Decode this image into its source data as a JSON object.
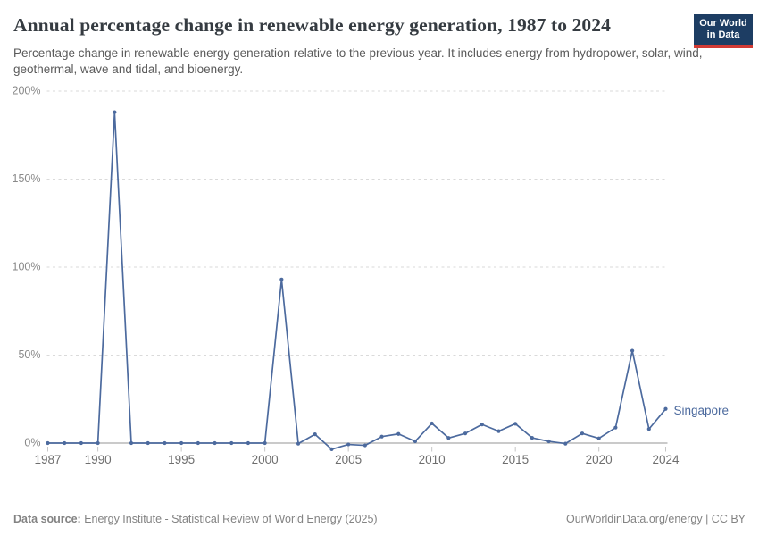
{
  "header": {
    "title": "Annual percentage change in renewable energy generation, 1987 to 2024",
    "subtitle": "Percentage change in renewable energy generation relative to the previous year. It includes energy from hydropower, solar, wind, geothermal, wave and tidal, and bioenergy."
  },
  "logo": {
    "line1": "Our World",
    "line2": "in Data",
    "bg_color": "#1d3d63",
    "accent_color": "#d23a34"
  },
  "chart_data": {
    "type": "line",
    "title": "Annual percentage change in renewable energy generation, 1987 to 2024",
    "xlabel": "",
    "ylabel": "",
    "x": [
      1987,
      1988,
      1989,
      1990,
      1991,
      1992,
      1993,
      1994,
      1995,
      1996,
      1997,
      1998,
      1999,
      2000,
      2001,
      2002,
      2003,
      2004,
      2005,
      2006,
      2007,
      2008,
      2009,
      2010,
      2011,
      2012,
      2013,
      2014,
      2015,
      2016,
      2017,
      2018,
      2019,
      2020,
      2021,
      2022,
      2023,
      2024
    ],
    "series": [
      {
        "name": "Singapore",
        "color": "#4c6a9e",
        "values": [
          0,
          0,
          0,
          0,
          188,
          0,
          0,
          0,
          0,
          0,
          0,
          0,
          0,
          0,
          93,
          -0.3,
          5,
          -3.5,
          -0.8,
          -1.3,
          3.7,
          5.2,
          1,
          11.2,
          2.9,
          5.5,
          10.6,
          6.8,
          11,
          3,
          1,
          -0.3,
          5.5,
          2.7,
          8.8,
          52.5,
          8,
          19.4
        ]
      }
    ],
    "xticks": [
      1987,
      1990,
      1995,
      2000,
      2005,
      2010,
      2015,
      2020,
      2024
    ],
    "yticks": [
      0,
      50,
      100,
      150,
      200
    ],
    "ytick_suffix": "%",
    "xlim": [
      1987,
      2024
    ],
    "ylim": [
      -5,
      205
    ],
    "grid": "horizontal-dashed",
    "legend": "end-of-line-label"
  },
  "footer": {
    "datasource_label": "Data source:",
    "datasource": " Energy Institute - Statistical Review of World Energy (2025)",
    "credit": "OurWorldinData.org/energy | CC BY"
  }
}
